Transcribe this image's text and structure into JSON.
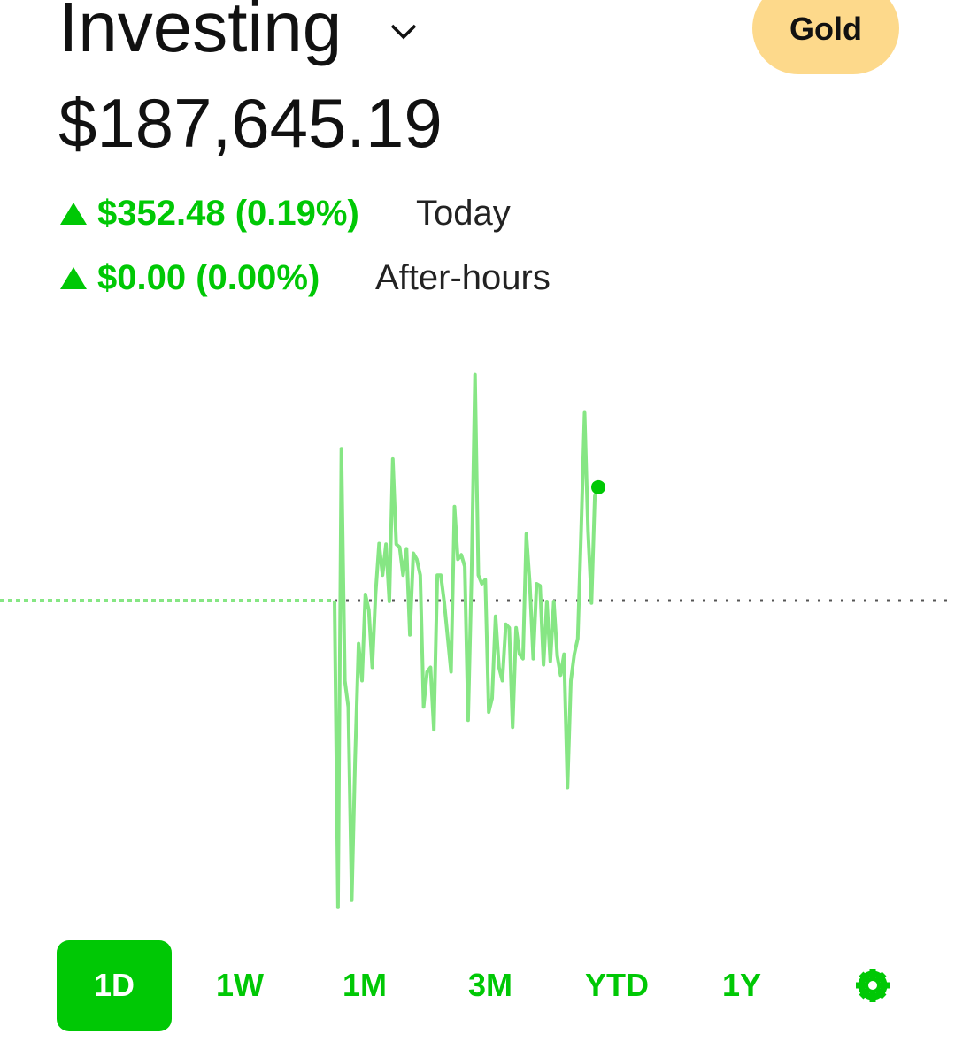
{
  "header": {
    "title": "Investing",
    "badge": "Gold",
    "balance": "$187,645.19",
    "today_change": "$352.48 (0.19%)",
    "today_label": "Today",
    "after_change": "$0.00 (0.00%)",
    "after_label": "After-hours"
  },
  "chart_data": {
    "type": "line",
    "color": "#86e684",
    "marker_color": "#00c805",
    "reference_line": 187292.71,
    "ylim": [
      186300,
      188060
    ],
    "values": [
      187293,
      186339,
      187765,
      187044,
      186962,
      186361,
      186798,
      187159,
      187044,
      187312,
      187263,
      187085,
      187317,
      187470,
      187372,
      187468,
      187290,
      187733,
      187468,
      187459,
      187372,
      187454,
      187186,
      187440,
      187421,
      187372,
      186962,
      187071,
      187085,
      186891,
      187372,
      187372,
      187290,
      187181,
      187071,
      187585,
      187421,
      187435,
      187399,
      186921,
      187372,
      187995,
      187372,
      187345,
      187358,
      186946,
      186989,
      187244,
      187085,
      187044,
      187219,
      187208,
      186899,
      187208,
      187126,
      187112,
      187500,
      187345,
      187112,
      187345,
      187339,
      187093,
      187290,
      187104,
      187290,
      187121,
      187061,
      187126,
      186711,
      187044,
      187126,
      187175,
      187509,
      187877,
      187509,
      187285,
      187618,
      187645.19
    ]
  },
  "range_buttons": [
    "1D",
    "1W",
    "1M",
    "3M",
    "YTD",
    "1Y"
  ]
}
